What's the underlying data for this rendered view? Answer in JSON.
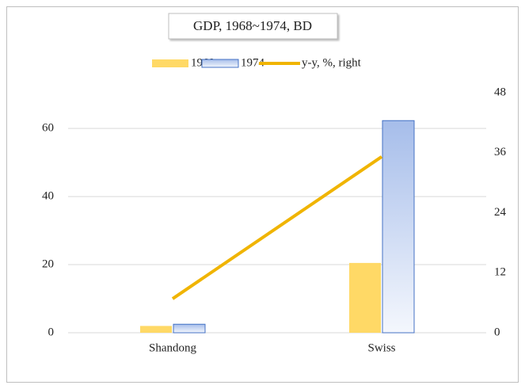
{
  "chart_data": {
    "type": "bar",
    "title": "GDP, 1968~1974, BD",
    "categories": [
      "Shandong",
      "Swiss"
    ],
    "series": [
      {
        "name": "1968",
        "color": "#ffd966",
        "values": [
          2,
          20.5
        ]
      },
      {
        "name": "1974",
        "color": "#4472c4",
        "values": [
          2.5,
          62.3
        ]
      },
      {
        "name": "y-y, %, right",
        "type": "line",
        "axis": "y2",
        "color": "#f0b400",
        "values": [
          6.8,
          35.2
        ]
      }
    ],
    "ylim": [
      0,
      70.5
    ],
    "yticks": [
      0,
      20,
      40,
      60
    ],
    "y2lim": [
      0,
      48
    ],
    "y2ticks": [
      0,
      12,
      24,
      36,
      48
    ],
    "grid": true,
    "legend": "top"
  }
}
